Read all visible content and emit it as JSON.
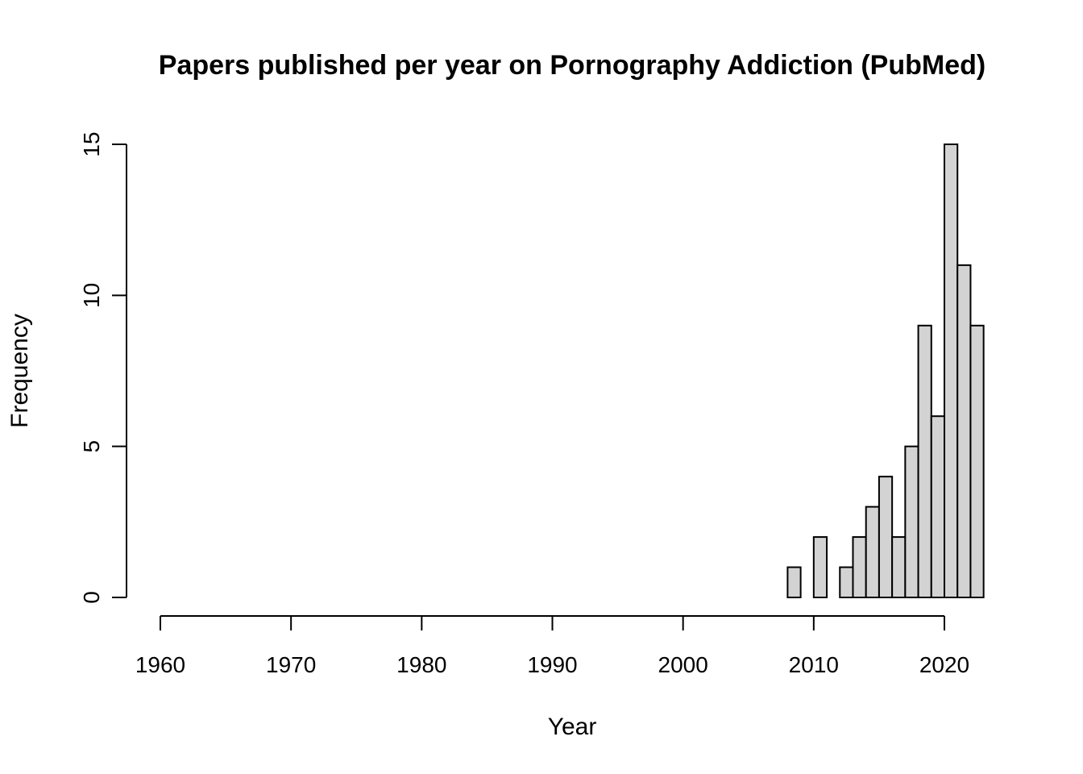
{
  "chart_data": {
    "type": "bar",
    "title": "Papers published per year on Pornography Addiction (PubMed)",
    "xlabel": "Year",
    "ylabel": "Frequency",
    "xlim": [
      1957.5,
      2023
    ],
    "ylim": [
      0,
      15
    ],
    "x_ticks": [
      1960,
      1970,
      1980,
      1990,
      2000,
      2010,
      2020
    ],
    "x_tick_labels": [
      "1960",
      "1970",
      "1980",
      "1990",
      "2000",
      "2010",
      "2020"
    ],
    "y_ticks": [
      0,
      5,
      10,
      15
    ],
    "y_tick_labels": [
      "0",
      "5",
      "10",
      "15"
    ],
    "bin_width": 1,
    "bins": [
      {
        "start": 2008,
        "end": 2009,
        "count": 1
      },
      {
        "start": 2009,
        "end": 2010,
        "count": 0
      },
      {
        "start": 2010,
        "end": 2011,
        "count": 2
      },
      {
        "start": 2011,
        "end": 2012,
        "count": 0
      },
      {
        "start": 2012,
        "end": 2013,
        "count": 1
      },
      {
        "start": 2013,
        "end": 2014,
        "count": 2
      },
      {
        "start": 2014,
        "end": 2015,
        "count": 3
      },
      {
        "start": 2015,
        "end": 2016,
        "count": 4
      },
      {
        "start": 2016,
        "end": 2017,
        "count": 2
      },
      {
        "start": 2017,
        "end": 2018,
        "count": 5
      },
      {
        "start": 2018,
        "end": 2019,
        "count": 9
      },
      {
        "start": 2019,
        "end": 2020,
        "count": 6
      },
      {
        "start": 2020,
        "end": 2021,
        "count": 15
      },
      {
        "start": 2021,
        "end": 2022,
        "count": 11
      },
      {
        "start": 2022,
        "end": 2023,
        "count": 9
      }
    ],
    "bar_color": "#d3d3d3",
    "grid": false
  }
}
